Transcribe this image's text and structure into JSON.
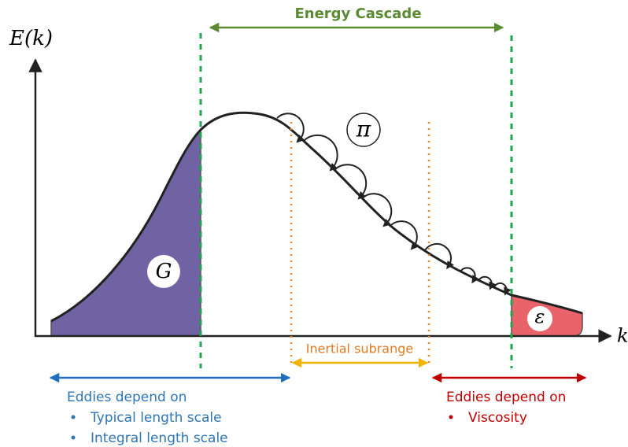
{
  "axes": {
    "y_label": "E(k)",
    "x_label": "k"
  },
  "energy_cascade": "Energy Cascade",
  "symbols": {
    "pi": "π",
    "g": "G",
    "epsilon": "ε"
  },
  "inertial_subrange": "Inertial subrange",
  "left_note": {
    "heading": "Eddies depend on",
    "bullets": [
      "Typical length scale",
      "Integral length scale"
    ]
  },
  "right_note": {
    "heading": "Eddies depend on",
    "bullets": [
      "Viscosity"
    ]
  }
}
